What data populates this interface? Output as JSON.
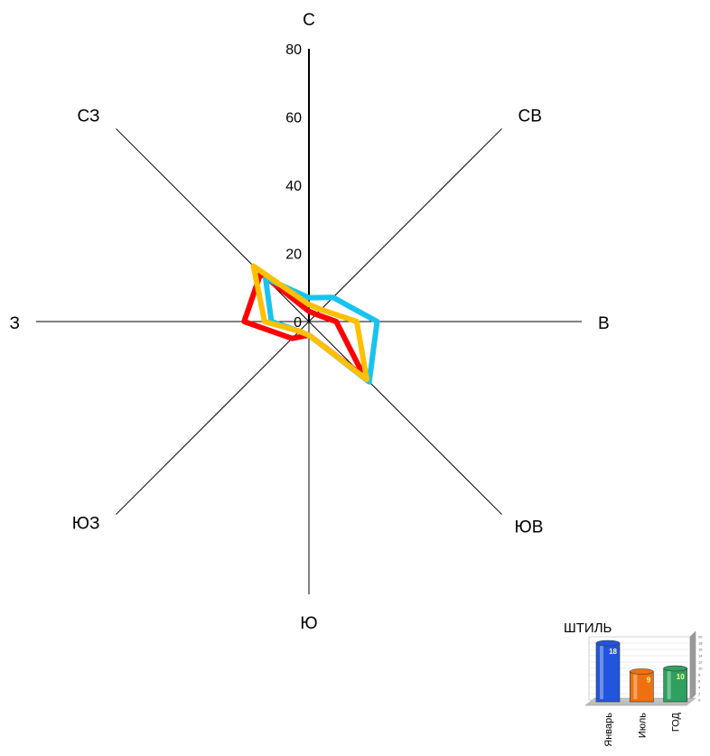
{
  "chart_data": [
    {
      "type": "radar",
      "directions": [
        "С",
        "СВ",
        "В",
        "ЮВ",
        "Ю",
        "ЮЗ",
        "З",
        "СЗ"
      ],
      "ticks": [
        "0",
        "20",
        "40",
        "60",
        "80"
      ],
      "rmax": 80,
      "series": [
        {
          "color": "#ff0000",
          "values": [
            3,
            3,
            8,
            23,
            4,
            7,
            19,
            20
          ]
        },
        {
          "color": "#19c3f0",
          "values": [
            7,
            10,
            20,
            25,
            4,
            4,
            11,
            18
          ]
        },
        {
          "color": "#ffc000",
          "values": [
            5,
            5,
            14,
            24,
            4,
            4,
            13,
            23
          ]
        }
      ]
    },
    {
      "type": "bar",
      "title": "ШТИЛЬ",
      "categories": [
        "Январь",
        "Июль",
        "ГОД"
      ],
      "values": [
        18,
        9,
        10
      ],
      "value_labels": [
        "18",
        "9",
        "10"
      ],
      "colors": [
        "#2255dd",
        "#f07010",
        "#2ea060"
      ],
      "ylim": [
        0,
        20
      ],
      "yticks": [
        "0",
        "2",
        "4",
        "6",
        "8",
        "10",
        "12",
        "14",
        "16",
        "18",
        "20"
      ]
    }
  ]
}
